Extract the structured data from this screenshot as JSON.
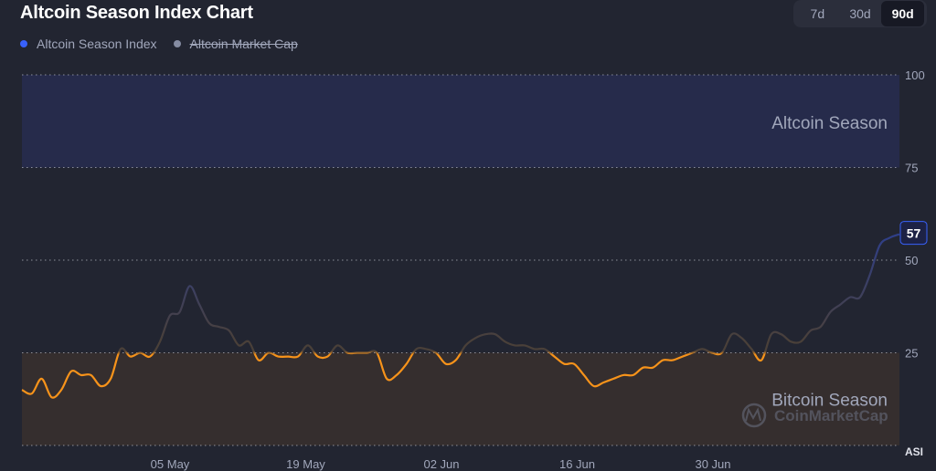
{
  "title": "Altcoin Season Index Chart",
  "legend": [
    {
      "label": "Altcoin Season Index",
      "color": "#3861fb",
      "enabled": true
    },
    {
      "label": "Altcoin Market Cap",
      "color": "#858ca2",
      "enabled": false
    }
  ],
  "range_buttons": [
    {
      "label": "7d",
      "active": false
    },
    {
      "label": "30d",
      "active": false
    },
    {
      "label": "90d",
      "active": true
    }
  ],
  "watermark": "CoinMarketCap",
  "colors": {
    "background": "#222531",
    "altcoin_zone": "#262b4b",
    "bitcoin_zone": "#352e2e",
    "bitcoin_line": "#f7931a",
    "altcoin_line": "#3861fb",
    "neutral_line": "#4a4039"
  },
  "chart_data": {
    "type": "line",
    "y_axis_title": "ASI",
    "ylim": [
      0,
      100
    ],
    "y_ticks": [
      100,
      75,
      50,
      25
    ],
    "x_tick_labels": [
      "05 May",
      "19 May",
      "02 Jun",
      "16 Jun",
      "30 Jun"
    ],
    "zones": [
      {
        "label": "Altcoin Season",
        "from": 75,
        "to": 100
      },
      {
        "label": "Bitcoin Season",
        "from": 0,
        "to": 25
      }
    ],
    "current_value": 57,
    "grid": "dotted horizontal",
    "series": [
      {
        "values": [
          15,
          14,
          18,
          13,
          15,
          20,
          19,
          19,
          16,
          18,
          26,
          24,
          25,
          24,
          28,
          35,
          36,
          43,
          38,
          33,
          32,
          31,
          27,
          28,
          23,
          25,
          24,
          24,
          24,
          27,
          24,
          24,
          27,
          25,
          25,
          25,
          25,
          18,
          19,
          22,
          26,
          26,
          25,
          22,
          23,
          27,
          29,
          30,
          30,
          28,
          27,
          27,
          26,
          26,
          24,
          22,
          22,
          19,
          16,
          17,
          18,
          19,
          19,
          21,
          21,
          23,
          23,
          24,
          25,
          26,
          25,
          25,
          30,
          29,
          26,
          23,
          30,
          30,
          28,
          28,
          31,
          32,
          36,
          38,
          40,
          40,
          46,
          54,
          56,
          57
        ]
      }
    ]
  }
}
